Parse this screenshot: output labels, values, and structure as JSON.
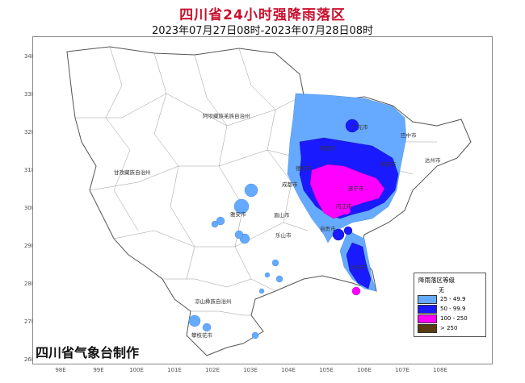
{
  "title": "四川省24小时强降雨落区",
  "subtitle": "2023年07月27日08时-2023年07月28日08时",
  "credit": "四川省气象台制作",
  "lat_labels": [
    "34N",
    "33N",
    "32N",
    "31N",
    "30N",
    "29N",
    "28N",
    "27N",
    "26N"
  ],
  "lon_labels": [
    "98E",
    "99E",
    "100E",
    "101E",
    "102E",
    "103E",
    "104E",
    "105E",
    "106E",
    "107E",
    "108E"
  ],
  "legend": {
    "title": "降雨落区等级",
    "none_label": "无",
    "items": [
      {
        "label": "25 - 49.9",
        "color": "#66aaff"
      },
      {
        "label": "50 - 99.9",
        "color": "#1a1aff"
      },
      {
        "label": "100 - 250",
        "color": "#ff00ff"
      },
      {
        "label": "> 250",
        "color": "#5a3a10"
      }
    ]
  },
  "places": {
    "aba": "阿坝藏族羌族自治州",
    "ganzi": "甘孜藏族自治州",
    "liangshan": "凉山彝族自治州",
    "guangyuan": "广元市",
    "bazhong": "巴中市",
    "dazhou": "达州市",
    "mianyang": "绵阳市",
    "deyang": "德阳市",
    "nanchong": "南充市",
    "suining": "遂宁市",
    "chengdu": "成都市",
    "yaan": "雅安市",
    "meishan": "眉山市",
    "leshan": "乐山市",
    "zigong": "自贡市",
    "neijiang": "内江市",
    "luzhou": "泸州市",
    "panzhihua": "攀枝花市"
  }
}
